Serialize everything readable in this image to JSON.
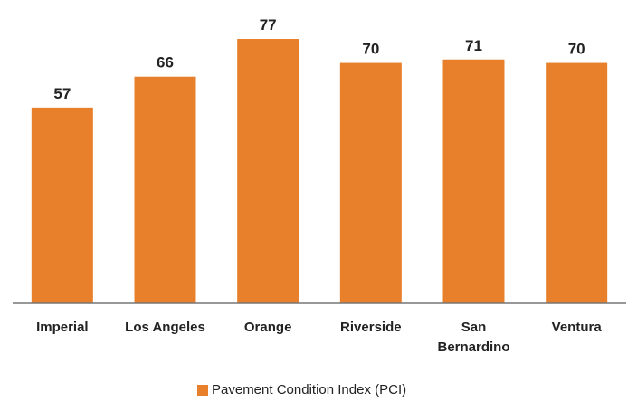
{
  "chart_data": {
    "type": "bar",
    "categories": [
      "Imperial",
      "Los Angeles",
      "Orange",
      "Riverside",
      "San Bernardino",
      "Ventura"
    ],
    "series": [
      {
        "name": "Pavement Condition Index (PCI)",
        "color": "#e8802b",
        "values": [
          57,
          66,
          77,
          70,
          71,
          70
        ]
      }
    ]
  }
}
